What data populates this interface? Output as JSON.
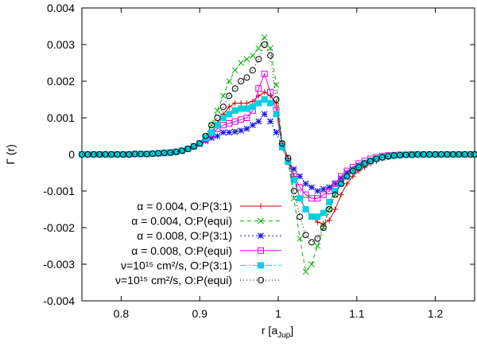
{
  "chart_data": {
    "type": "line",
    "xlabel": "r [a",
    "xlabel_sub": "Jup",
    "xlabel_close": "]",
    "ylabel": "Γ (r)",
    "xlim": [
      0.75,
      1.25
    ],
    "ylim": [
      -0.004,
      0.004
    ],
    "grid": false,
    "legend_position": "bottom-left",
    "x_ticks": [
      {
        "value": 0.8,
        "label": "0.8"
      },
      {
        "value": 0.9,
        "label": "0.9"
      },
      {
        "value": 1.0,
        "label": "1"
      },
      {
        "value": 1.1,
        "label": "1.1"
      },
      {
        "value": 1.2,
        "label": "1.2"
      }
    ],
    "y_ticks": [
      {
        "value": 0.004,
        "label": "0.004"
      },
      {
        "value": 0.003,
        "label": "0.003"
      },
      {
        "value": 0.002,
        "label": "0.002"
      },
      {
        "value": 0.001,
        "label": "0.001"
      },
      {
        "value": 0,
        "label": "0"
      },
      {
        "value": -0.001,
        "label": "-0.001"
      },
      {
        "value": -0.002,
        "label": "-0.002"
      },
      {
        "value": -0.003,
        "label": "-0.003"
      },
      {
        "value": -0.004,
        "label": "-0.004"
      }
    ],
    "x": [
      0.75,
      0.7575,
      0.765,
      0.7725,
      0.78,
      0.7875,
      0.795,
      0.8025,
      0.81,
      0.8175,
      0.825,
      0.8325,
      0.84,
      0.8475,
      0.855,
      0.8625,
      0.87,
      0.8775,
      0.885,
      0.8925,
      0.9,
      0.9075,
      0.915,
      0.9225,
      0.93,
      0.9375,
      0.945,
      0.9525,
      0.96,
      0.9675,
      0.975,
      0.9825,
      0.99,
      0.9975,
      1.005,
      1.0125,
      1.02,
      1.0275,
      1.035,
      1.0425,
      1.05,
      1.0575,
      1.065,
      1.0725,
      1.08,
      1.0875,
      1.095,
      1.1025,
      1.11,
      1.1175,
      1.125,
      1.1325,
      1.14,
      1.1475,
      1.155,
      1.1625,
      1.17,
      1.1775,
      1.185,
      1.1925,
      1.2,
      1.2075,
      1.215,
      1.2225,
      1.23,
      1.2375,
      1.245,
      1.25
    ],
    "series": [
      {
        "name": "α = 0.004, O:P(3:1)",
        "color": "#d40000",
        "dash": "",
        "marker": "plus",
        "values": [
          0,
          0,
          0,
          0,
          0,
          0,
          0,
          0,
          0,
          1e-05,
          1e-05,
          1e-05,
          2e-05,
          3e-05,
          4e-05,
          5e-05,
          7e-05,
          0.0001,
          0.00015,
          0.00022,
          0.0003,
          0.00045,
          0.0006,
          0.00085,
          0.0011,
          0.0013,
          0.0014,
          0.0014,
          0.0014,
          0.00145,
          0.0016,
          0.0017,
          0.0016,
          0.0014,
          0.0003,
          -0.0001,
          -0.0006,
          -0.0012,
          -0.0015,
          -0.0017,
          -0.00185,
          -0.0019,
          -0.0018,
          -0.0015,
          -0.0011,
          -0.0008,
          -0.0006,
          -0.00045,
          -0.00035,
          -0.00025,
          -0.00018,
          -0.00012,
          -8e-05,
          -5e-05,
          -3e-05,
          -2e-05,
          -1e-05,
          -1e-05,
          0,
          0,
          0,
          0,
          0,
          0,
          0,
          0,
          0,
          0
        ]
      },
      {
        "name": "α = 0.004, O:P(equi)",
        "color": "#00b000",
        "dash": "5,4",
        "marker": "x",
        "values": [
          0,
          0,
          0,
          0,
          0,
          0,
          0,
          0,
          0,
          1e-05,
          1e-05,
          1e-05,
          2e-05,
          3e-05,
          4e-05,
          5e-05,
          7e-05,
          0.0001,
          0.00015,
          0.00022,
          0.0003,
          0.0005,
          0.0008,
          0.0012,
          0.0016,
          0.002,
          0.0023,
          0.0025,
          0.0026,
          0.0027,
          0.0029,
          0.0032,
          0.0029,
          0.0019,
          0.0003,
          -0.0002,
          -0.0012,
          -0.0023,
          -0.0032,
          -0.003,
          -0.0025,
          -0.002,
          -0.0015,
          -0.0011,
          -0.0008,
          -0.0006,
          -0.00045,
          -0.00035,
          -0.00025,
          -0.00018,
          -0.00012,
          -8e-05,
          -5e-05,
          -3e-05,
          -2e-05,
          -1e-05,
          -1e-05,
          0,
          0,
          0,
          0,
          0,
          0,
          0,
          0,
          0,
          0,
          0
        ]
      },
      {
        "name": "α = 0.008, O:P(3:1)",
        "color": "#1a1ae0",
        "dash": "2,3",
        "marker": "star",
        "values": [
          0,
          0,
          0,
          0,
          0,
          0,
          0,
          0,
          0,
          1e-05,
          1e-05,
          1e-05,
          2e-05,
          3e-05,
          4e-05,
          5e-05,
          7e-05,
          0.0001,
          0.00015,
          0.0002,
          0.00028,
          0.00037,
          0.00045,
          0.0005,
          0.0006,
          0.0006,
          0.00062,
          0.00065,
          0.0007,
          0.0008,
          0.0009,
          0.0011,
          0.0009,
          0.0006,
          0.0002,
          -0.0002,
          -0.0004,
          -0.0006,
          -0.0008,
          -0.0009,
          -0.001,
          -0.00095,
          -0.0009,
          -0.0008,
          -0.00065,
          -0.0005,
          -0.0004,
          -0.0003,
          -0.00022,
          -0.00016,
          -0.00011,
          -7e-05,
          -5e-05,
          -3e-05,
          -2e-05,
          -1e-05,
          -1e-05,
          0,
          0,
          0,
          0,
          0,
          0,
          0,
          0,
          0,
          0,
          0
        ]
      },
      {
        "name": "α = 0.008, O:P(equi)",
        "color": "#e000e0",
        "dash": "",
        "marker": "square",
        "values": [
          0,
          0,
          0,
          0,
          0,
          0,
          0,
          0,
          0,
          1e-05,
          1e-05,
          1e-05,
          2e-05,
          3e-05,
          4e-05,
          5e-05,
          7e-05,
          0.0001,
          0.00015,
          0.00022,
          0.0003,
          0.00042,
          0.00055,
          0.0007,
          0.0008,
          0.00085,
          0.0009,
          0.00095,
          0.001,
          0.0012,
          0.0018,
          0.0022,
          0.0017,
          0.0012,
          0.0002,
          -0.0002,
          -0.0006,
          -0.0009,
          -0.0011,
          -0.0012,
          -0.0012,
          -0.0011,
          -0.001,
          -0.0008,
          -0.0006,
          -0.00045,
          -0.00035,
          -0.00025,
          -0.00018,
          -0.00012,
          -8e-05,
          -5e-05,
          -3e-05,
          -2e-05,
          -1e-05,
          -1e-05,
          0,
          0,
          0,
          0,
          0,
          0,
          0,
          0,
          0,
          0,
          0,
          0
        ]
      },
      {
        "name": "ν=10¹⁵ cm²/s, O:P(3:1)",
        "color": "#00d0e0",
        "dash": "8,3,2,3",
        "marker": "filled-square",
        "values": [
          0,
          0,
          0,
          0,
          0,
          0,
          0,
          0,
          0,
          1e-05,
          1e-05,
          1e-05,
          2e-05,
          3e-05,
          4e-05,
          5e-05,
          7e-05,
          0.0001,
          0.00015,
          0.00022,
          0.0003,
          0.00045,
          0.0006,
          0.0008,
          0.001,
          0.0011,
          0.0012,
          0.00125,
          0.00125,
          0.0013,
          0.0014,
          0.0015,
          0.0014,
          0.0011,
          0.0002,
          -0.0002,
          -0.0007,
          -0.0012,
          -0.0015,
          -0.0017,
          -0.0017,
          -0.0016,
          -0.0013,
          -0.001,
          -0.0008,
          -0.0006,
          -0.00045,
          -0.00035,
          -0.00025,
          -0.00018,
          -0.00012,
          -8e-05,
          -5e-05,
          -3e-05,
          -2e-05,
          -1e-05,
          -1e-05,
          0,
          0,
          0,
          0,
          0,
          0,
          0,
          0,
          0,
          0,
          0
        ]
      },
      {
        "name": "ν=10¹⁵ cm²/s, O:P(equi)",
        "color": "#000000",
        "dash": "1,3",
        "marker": "circle",
        "values": [
          0,
          0,
          0,
          0,
          0,
          0,
          0,
          0,
          0,
          1e-05,
          1e-05,
          1e-05,
          2e-05,
          3e-05,
          4e-05,
          5e-05,
          7e-05,
          0.0001,
          0.00015,
          0.00022,
          0.0003,
          0.0005,
          0.0008,
          0.001,
          0.0013,
          0.0016,
          0.0018,
          0.002,
          0.0021,
          0.0023,
          0.0026,
          0.003,
          0.0027,
          0.0015,
          0.0003,
          -0.0001,
          -0.001,
          -0.0017,
          -0.0022,
          -0.0024,
          -0.0023,
          -0.002,
          -0.0015,
          -0.0011,
          -0.0008,
          -0.0006,
          -0.00045,
          -0.00035,
          -0.00025,
          -0.00018,
          -0.00012,
          -8e-05,
          -5e-05,
          -3e-05,
          -2e-05,
          -1e-05,
          -1e-05,
          0,
          0,
          0,
          0,
          0,
          0,
          0,
          0,
          0,
          0,
          0
        ]
      }
    ]
  }
}
